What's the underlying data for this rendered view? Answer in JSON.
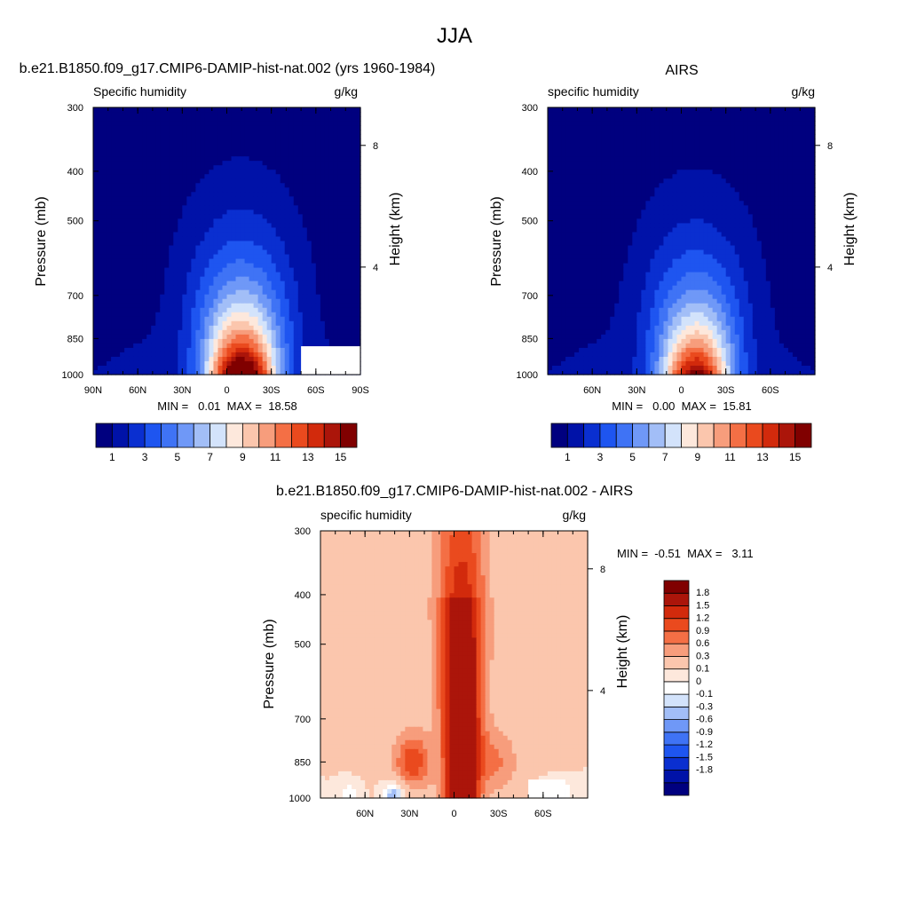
{
  "title": "JJA",
  "panels": [
    {
      "heading": "b.e21.B1850.f09_g17.CMIP6-DAMIP-hist-nat.002 (yrs 1960-1984)",
      "left_label": "Specific humidity",
      "right_label": "g/kg",
      "ylabel": "Pressure (mb)",
      "y2label": "Height (km)",
      "stats": "MIN =   0.01  MAX =  18.58"
    },
    {
      "heading": "AIRS",
      "left_label": "specific humidity",
      "right_label": "g/kg",
      "ylabel": "Pressure (mb)",
      "y2label": "Height (km)",
      "stats": "MIN =   0.00  MAX =  15.81"
    },
    {
      "heading": "b.e21.B1850.f09_g17.CMIP6-DAMIP-hist-nat.002 - AIRS",
      "left_label": "specific humidity",
      "right_label": "g/kg",
      "ylabel": "Pressure (mb)",
      "y2label": "Height (km)",
      "stats": "MIN =  -0.51  MAX =   3.11"
    }
  ],
  "chart_data": [
    {
      "type": "heatmap",
      "title": "b.e21.B1850.f09_g17.CMIP6-DAMIP-hist-nat.002 (yrs 1960-1984)",
      "subtitle_left": "Specific humidity",
      "units": "g/kg",
      "xlabel": "",
      "ylabel": "Pressure (mb)",
      "y2label": "Height (km)",
      "x_ticks": [
        "90N",
        "60N",
        "30N",
        "0",
        "30S",
        "60S",
        "90S"
      ],
      "y_ticks": [
        "300",
        "400",
        "500",
        "700",
        "850",
        "1000"
      ],
      "y2_ticks": [
        "8",
        "4"
      ],
      "xlim": [
        90,
        -90
      ],
      "ylim": [
        1000,
        300
      ],
      "y_scale": "log",
      "contour_levels": [
        1,
        2,
        3,
        4,
        5,
        6,
        7,
        8,
        9,
        10,
        11,
        12,
        13,
        14,
        15
      ],
      "colorbar_labels": [
        "1",
        "3",
        "5",
        "7",
        "9",
        "11",
        "13",
        "15"
      ],
      "field": {
        "peak_lat": -10,
        "surface_max": 18.58,
        "min": 0.01,
        "max": 18.58
      },
      "missing_region": {
        "lat": [
          -50,
          -90
        ],
        "pressure": [
          880,
          1000
        ]
      }
    },
    {
      "type": "heatmap",
      "title": "AIRS",
      "subtitle_left": "specific humidity",
      "units": "g/kg",
      "xlabel": "",
      "ylabel": "Pressure (mb)",
      "y2label": "Height (km)",
      "x_ticks": [
        "60N",
        "30N",
        "0",
        "30S",
        "60S"
      ],
      "y_ticks": [
        "300",
        "400",
        "500",
        "700",
        "850",
        "1000"
      ],
      "y2_ticks": [
        "8",
        "4"
      ],
      "xlim": [
        90,
        -90
      ],
      "ylim": [
        1000,
        300
      ],
      "y_scale": "log",
      "contour_levels": [
        1,
        2,
        3,
        4,
        5,
        6,
        7,
        8,
        9,
        10,
        11,
        12,
        13,
        14,
        15
      ],
      "colorbar_labels": [
        "1",
        "3",
        "5",
        "7",
        "9",
        "11",
        "13",
        "15"
      ],
      "field": {
        "peak_lat": -10,
        "surface_max": 15.81,
        "min": 0.0,
        "max": 15.81
      }
    },
    {
      "type": "heatmap",
      "title": "b.e21.B1850.f09_g17.CMIP6-DAMIP-hist-nat.002 - AIRS",
      "subtitle_left": "specific humidity",
      "units": "g/kg",
      "xlabel": "",
      "ylabel": "Pressure (mb)",
      "y2label": "Height (km)",
      "x_ticks": [
        "60N",
        "30N",
        "0",
        "30S",
        "60S"
      ],
      "y_ticks": [
        "300",
        "400",
        "500",
        "700",
        "850",
        "1000"
      ],
      "y2_ticks": [
        "8",
        "4"
      ],
      "xlim": [
        90,
        -90
      ],
      "ylim": [
        1000,
        300
      ],
      "y_scale": "log",
      "contour_levels": [
        -1.8,
        -1.5,
        -1.2,
        -0.9,
        -0.6,
        -0.3,
        -0.1,
        0,
        0.1,
        0.3,
        0.6,
        0.9,
        1.2,
        1.5,
        1.8
      ],
      "colorbar_labels": [
        "1.8",
        "1.5",
        "1.2",
        "0.9",
        "0.6",
        "0.3",
        "0.1",
        "0",
        "-0.1",
        "-0.3",
        "-0.6",
        "-0.9",
        "-1.2",
        "-1.5",
        "-1.8"
      ],
      "field": {
        "min": -0.51,
        "max": 3.11
      },
      "missing_region": {
        "lat": [
          -50,
          -75
        ],
        "pressure": [
          920,
          1000
        ]
      }
    }
  ],
  "colors": {
    "abs_palette": [
      "#00007f",
      "#0012a8",
      "#0a2fd0",
      "#1e55f0",
      "#3f73f5",
      "#6f98f7",
      "#a2bef7",
      "#d3e3fb",
      "#fde8dc",
      "#fbc6ad",
      "#f79d7c",
      "#f46f45",
      "#ea4a1e",
      "#d22a0c",
      "#ab150a",
      "#800000"
    ],
    "diff_palette": [
      "#00007f",
      "#0012a8",
      "#0a2fd0",
      "#1e55f0",
      "#3f73f5",
      "#6f98f7",
      "#a2bef7",
      "#d3e3fb",
      "#ffffff",
      "#fde8dc",
      "#fbc6ad",
      "#f79d7c",
      "#f46f45",
      "#ea4a1e",
      "#d22a0c",
      "#ab150a",
      "#800000"
    ]
  }
}
